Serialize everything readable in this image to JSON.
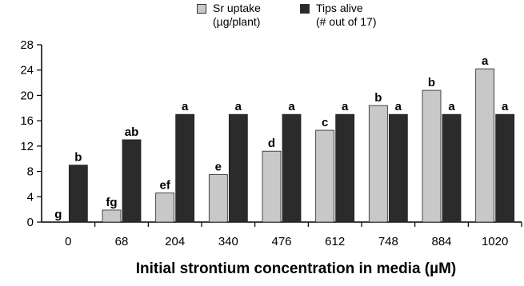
{
  "chart_data": {
    "type": "bar",
    "title": "",
    "xlabel": "Initial strontium concentration in media (µM)",
    "ylabel": "",
    "ylim": [
      0,
      28
    ],
    "yticks": [
      0,
      4,
      8,
      12,
      16,
      20,
      24,
      28
    ],
    "grid": false,
    "legend_position": "top",
    "categories": [
      "0",
      "68",
      "204",
      "340",
      "476",
      "612",
      "748",
      "884",
      "1020"
    ],
    "series": [
      {
        "name": "Sr uptake (µg/plant)",
        "color": "#c8c8c8",
        "values": [
          0,
          1.9,
          4.6,
          7.5,
          11.2,
          14.5,
          18.4,
          20.8,
          24.2
        ],
        "labels": [
          "g",
          "fg",
          "ef",
          "e",
          "d",
          "c",
          "b",
          "b",
          "a"
        ]
      },
      {
        "name": "Tips alive (# out of 17)",
        "color": "#2b2b2b",
        "values": [
          9,
          13,
          17,
          17,
          17,
          17,
          17,
          17,
          17
        ],
        "labels": [
          "b",
          "ab",
          "a",
          "a",
          "a",
          "a",
          "a",
          "a",
          "a"
        ]
      }
    ]
  },
  "legend": [
    {
      "line1": "Sr uptake",
      "line2": "(µg/plant)",
      "color": "#c8c8c8"
    },
    {
      "line1": "Tips alive",
      "line2": "(# out of 17)",
      "color": "#2b2b2b"
    }
  ]
}
